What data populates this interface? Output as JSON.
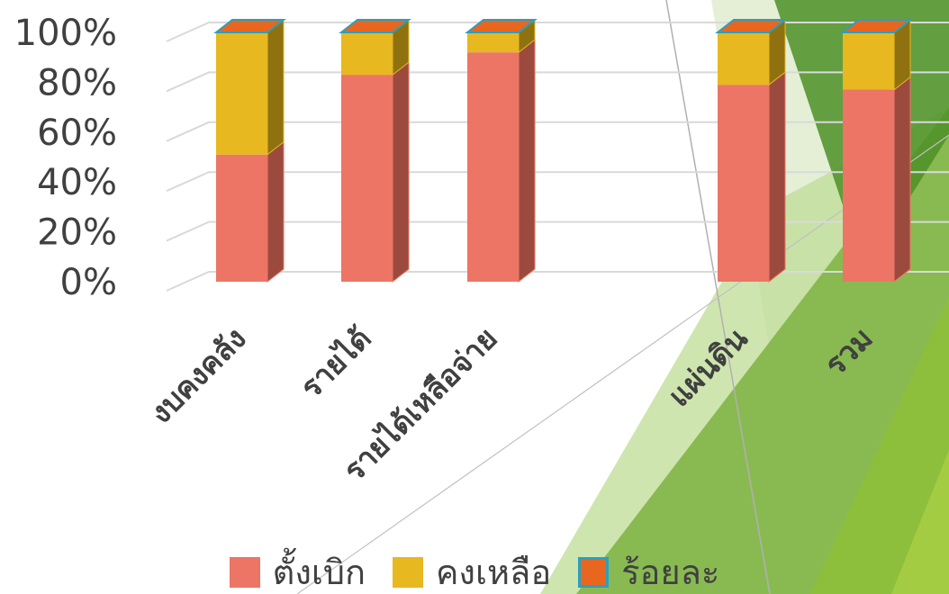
{
  "chart_data": {
    "type": "bar",
    "stacked": true,
    "percent": true,
    "categories": [
      "งบคงคลัง",
      "รายได้",
      "รายได้เหลือจ่าย",
      "",
      "แผ่นดิน",
      "รวม"
    ],
    "series": [
      {
        "name": "ตั้งเบิก",
        "values": [
          51,
          83,
          92,
          null,
          79,
          77
        ],
        "color": "#ec7565",
        "side_color": "#9c4a3e"
      },
      {
        "name": "คงเหลือ",
        "values": [
          49,
          17,
          8,
          null,
          21,
          23
        ],
        "color": "#e7b81f",
        "side_color": "#8f720f"
      },
      {
        "name": "ร้อยละ",
        "values": [
          0,
          0,
          0,
          null,
          0,
          0
        ],
        "color": "#e9661f",
        "border_color": "#29a0c0"
      }
    ],
    "ylim": [
      0,
      100
    ],
    "yticks": [
      "0%",
      "20%",
      "40%",
      "60%",
      "80%",
      "100%"
    ],
    "grid": true,
    "legend": "bottom"
  }
}
